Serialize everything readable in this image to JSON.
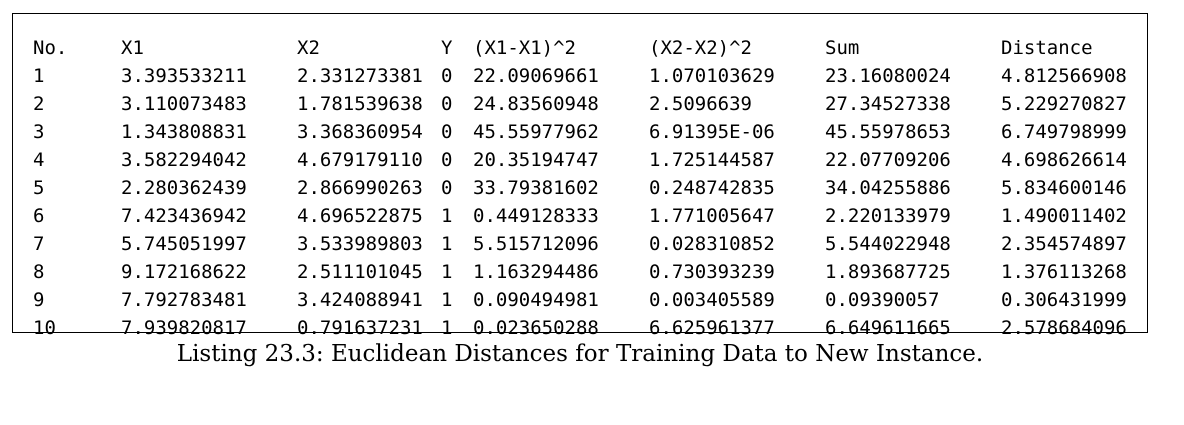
{
  "table": {
    "headers": [
      "No.",
      "X1",
      "X2",
      "Y",
      "(X1-X1)^2",
      "(X2-X2)^2",
      "Sum",
      "Distance"
    ],
    "rows": [
      [
        "1",
        "3.393533211",
        "2.331273381",
        "0",
        "22.09069661",
        "1.070103629",
        "23.16080024",
        "4.812566908"
      ],
      [
        "2",
        "3.110073483",
        "1.781539638",
        "0",
        "24.83560948",
        "2.5096639",
        "27.34527338",
        "5.229270827"
      ],
      [
        "3",
        "1.343808831",
        "3.368360954",
        "0",
        "45.55977962",
        "6.91395E-06",
        "45.55978653",
        "6.749798999"
      ],
      [
        "4",
        "3.582294042",
        "4.679179110",
        "0",
        "20.35194747",
        "1.725144587",
        "22.07709206",
        "4.698626614"
      ],
      [
        "5",
        "2.280362439",
        "2.866990263",
        "0",
        "33.79381602",
        "0.248742835",
        "34.04255886",
        "5.834600146"
      ],
      [
        "6",
        "7.423436942",
        "4.696522875",
        "1",
        "0.449128333",
        "1.771005647",
        "2.220133979",
        "1.490011402"
      ],
      [
        "7",
        "5.745051997",
        "3.533989803",
        "1",
        "5.515712096",
        "0.028310852",
        "5.544022948",
        "2.354574897"
      ],
      [
        "8",
        "9.172168622",
        "2.511101045",
        "1",
        "1.163294486",
        "0.730393239",
        "1.893687725",
        "1.376113268"
      ],
      [
        "9",
        "7.792783481",
        "3.424088941",
        "1",
        "0.090494981",
        "0.003405589",
        "0.09390057",
        "0.306431999"
      ],
      [
        "10",
        "7.939820817",
        "0.791637231",
        "1",
        "0.023650288",
        "6.625961377",
        "6.649611665",
        "2.578684096"
      ]
    ]
  },
  "caption": "Listing 23.3: Euclidean Distances for Training Data to New Instance."
}
